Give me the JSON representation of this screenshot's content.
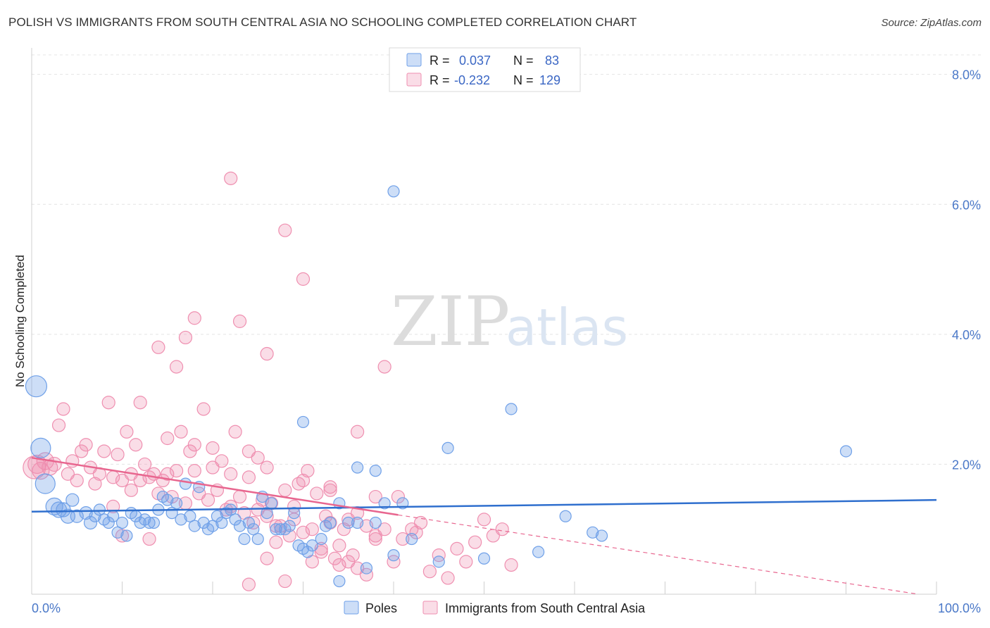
{
  "title": "POLISH VS IMMIGRANTS FROM SOUTH CENTRAL ASIA NO SCHOOLING COMPLETED CORRELATION CHART",
  "source": "Source: ZipAtlas.com",
  "watermark": {
    "zip": "ZIP",
    "atlas": "atlas"
  },
  "colors": {
    "poles": "#6fa0e8",
    "poles_fill": "rgba(111,160,232,0.35)",
    "poles_line": "#2f6fce",
    "immigrants": "#ef8fb0",
    "immigrants_fill": "rgba(239,143,176,0.30)",
    "immigrants_line": "#e8668f",
    "tick_label": "#4a78c8",
    "grid": "#e4e4e4"
  },
  "legend_box": {
    "rows": [
      {
        "r_label": "R =",
        "r_value": "0.037",
        "n_label": "N =",
        "n_value": "83"
      },
      {
        "r_label": "R =",
        "r_value": "-0.232",
        "n_label": "N =",
        "n_value": "129"
      }
    ]
  },
  "chart_data": {
    "type": "scatter",
    "title": "POLISH VS IMMIGRANTS FROM SOUTH CENTRAL ASIA NO SCHOOLING COMPLETED CORRELATION CHART",
    "xlabel": "",
    "ylabel": "No Schooling Completed",
    "xlim": [
      0,
      100
    ],
    "ylim": [
      0,
      8.3
    ],
    "x_tick_labels": [
      "0.0%",
      "100.0%"
    ],
    "y_ticks": [
      2.0,
      4.0,
      6.0,
      8.0
    ],
    "y_tick_labels": [
      "2.0%",
      "4.0%",
      "6.0%",
      "8.0%"
    ],
    "grid": true,
    "series": [
      {
        "name": "Poles",
        "r": 0.037,
        "n": 83,
        "trend": {
          "x": [
            0,
            100
          ],
          "y": [
            1.27,
            1.45
          ]
        },
        "points": [
          [
            0.5,
            3.2,
            15
          ],
          [
            1,
            2.25,
            14
          ],
          [
            1.5,
            1.7,
            14
          ],
          [
            2.5,
            1.35,
            12
          ],
          [
            3,
            1.3,
            11
          ],
          [
            3.5,
            1.3,
            10
          ],
          [
            4,
            1.2,
            10
          ],
          [
            4.5,
            1.45,
            9
          ],
          [
            5,
            1.2,
            9
          ],
          [
            6,
            1.25,
            9
          ],
          [
            6.5,
            1.1,
            9
          ],
          [
            7,
            1.2,
            8
          ],
          [
            7.5,
            1.3,
            8
          ],
          [
            8,
            1.15,
            8
          ],
          [
            8.5,
            1.1,
            8
          ],
          [
            9,
            1.2,
            8
          ],
          [
            9.5,
            0.95,
            8
          ],
          [
            10,
            1.1,
            8
          ],
          [
            10.5,
            0.9,
            8
          ],
          [
            11,
            1.25,
            8
          ],
          [
            11.5,
            1.2,
            8
          ],
          [
            12,
            1.1,
            8
          ],
          [
            12.5,
            1.15,
            8
          ],
          [
            13,
            1.1,
            8
          ],
          [
            13.5,
            1.1,
            8
          ],
          [
            14,
            1.3,
            8
          ],
          [
            14.5,
            1.5,
            8
          ],
          [
            15,
            1.45,
            8
          ],
          [
            15.5,
            1.25,
            8
          ],
          [
            16,
            1.4,
            8
          ],
          [
            16.5,
            1.15,
            8
          ],
          [
            17,
            1.7,
            8
          ],
          [
            17.5,
            1.2,
            8
          ],
          [
            18,
            1.05,
            8
          ],
          [
            18.5,
            1.65,
            8
          ],
          [
            19,
            1.1,
            8
          ],
          [
            19.5,
            1.0,
            8
          ],
          [
            20,
            1.05,
            8
          ],
          [
            20.5,
            1.2,
            8
          ],
          [
            21,
            1.1,
            8
          ],
          [
            21.5,
            1.25,
            8
          ],
          [
            22,
            1.3,
            8
          ],
          [
            22.5,
            1.15,
            8
          ],
          [
            23,
            1.05,
            8
          ],
          [
            23.5,
            0.85,
            8
          ],
          [
            24,
            1.1,
            8
          ],
          [
            24.5,
            1.0,
            8
          ],
          [
            25,
            0.85,
            8
          ],
          [
            25.5,
            1.5,
            8
          ],
          [
            26,
            1.25,
            8
          ],
          [
            26.5,
            1.4,
            8
          ],
          [
            27,
            1.0,
            8
          ],
          [
            27.5,
            1.0,
            8
          ],
          [
            28,
            1.0,
            8
          ],
          [
            28.5,
            1.05,
            8
          ],
          [
            29,
            1.25,
            8
          ],
          [
            29.5,
            0.75,
            8
          ],
          [
            30,
            0.7,
            8
          ],
          [
            30.5,
            0.65,
            8
          ],
          [
            31,
            0.75,
            8
          ],
          [
            32,
            0.85,
            8
          ],
          [
            33,
            1.1,
            8
          ],
          [
            32.5,
            1.05,
            8
          ],
          [
            34,
            1.4,
            8
          ],
          [
            35,
            1.1,
            8
          ],
          [
            36,
            1.1,
            8
          ],
          [
            37,
            0.4,
            8
          ],
          [
            38,
            1.1,
            8
          ],
          [
            39,
            1.4,
            8
          ],
          [
            40,
            0.6,
            8
          ],
          [
            41,
            1.4,
            8
          ],
          [
            30,
            2.65,
            8
          ],
          [
            34,
            0.2,
            8
          ],
          [
            36,
            1.95,
            8
          ],
          [
            38,
            1.9,
            8
          ],
          [
            40,
            6.2,
            8
          ],
          [
            42,
            0.85,
            8
          ],
          [
            45,
            0.5,
            8
          ],
          [
            46,
            2.25,
            8
          ],
          [
            50,
            0.55,
            8
          ],
          [
            53,
            2.85,
            8
          ],
          [
            56,
            0.65,
            8
          ],
          [
            59,
            1.2,
            8
          ],
          [
            62,
            0.95,
            8
          ],
          [
            63,
            0.9,
            8
          ],
          [
            90,
            2.2,
            8
          ]
        ]
      },
      {
        "name": "Immigrants from South Central Asia",
        "r": -0.232,
        "n": 129,
        "trend": {
          "x": [
            0,
            40.5
          ],
          "y": [
            2.1,
            1.22
          ]
        },
        "trend_dashed": {
          "x": [
            40.5,
            98
          ],
          "y": [
            1.22,
            0.0
          ]
        },
        "points": [
          [
            0.3,
            1.95,
            16
          ],
          [
            0.6,
            2.0,
            13
          ],
          [
            1,
            1.9,
            12
          ],
          [
            1.5,
            2.05,
            12
          ],
          [
            2,
            1.95,
            11
          ],
          [
            2.5,
            2.0,
            10
          ],
          [
            3,
            2.6,
            9
          ],
          [
            3.5,
            2.85,
            9
          ],
          [
            4,
            1.85,
            9
          ],
          [
            4.5,
            2.05,
            9
          ],
          [
            5,
            1.75,
            9
          ],
          [
            5.5,
            2.2,
            9
          ],
          [
            6,
            2.3,
            9
          ],
          [
            6.5,
            1.95,
            9
          ],
          [
            7,
            1.7,
            9
          ],
          [
            7.5,
            1.85,
            9
          ],
          [
            8,
            2.2,
            9
          ],
          [
            8.5,
            2.95,
            9
          ],
          [
            9,
            1.8,
            9
          ],
          [
            9.5,
            2.15,
            9
          ],
          [
            10,
            1.75,
            9
          ],
          [
            10.5,
            2.5,
            9
          ],
          [
            11,
            1.85,
            9
          ],
          [
            11.5,
            2.3,
            9
          ],
          [
            12,
            1.75,
            9
          ],
          [
            12.5,
            2.0,
            9
          ],
          [
            13,
            1.8,
            9
          ],
          [
            13.5,
            1.85,
            9
          ],
          [
            14,
            1.55,
            9
          ],
          [
            14.5,
            1.75,
            9
          ],
          [
            15,
            1.85,
            9
          ],
          [
            15.5,
            1.5,
            9
          ],
          [
            16,
            1.9,
            9
          ],
          [
            16.5,
            2.5,
            9
          ],
          [
            17,
            1.4,
            9
          ],
          [
            17.5,
            2.2,
            9
          ],
          [
            18,
            1.9,
            9
          ],
          [
            18.5,
            1.55,
            9
          ],
          [
            19,
            2.85,
            9
          ],
          [
            19.5,
            1.45,
            9
          ],
          [
            20,
            1.95,
            9
          ],
          [
            20.5,
            1.6,
            9
          ],
          [
            21,
            2.05,
            9
          ],
          [
            21.5,
            1.3,
            9
          ],
          [
            22,
            1.85,
            9
          ],
          [
            22.5,
            2.5,
            9
          ],
          [
            23,
            1.5,
            9
          ],
          [
            23.5,
            1.25,
            9
          ],
          [
            24,
            1.8,
            9
          ],
          [
            24.5,
            1.1,
            9
          ],
          [
            25,
            2.1,
            9
          ],
          [
            25.5,
            1.45,
            9
          ],
          [
            26,
            1.2,
            9
          ],
          [
            26.5,
            1.4,
            9
          ],
          [
            27,
            0.8,
            9
          ],
          [
            27.5,
            1.05,
            9
          ],
          [
            28,
            1.6,
            9
          ],
          [
            28.5,
            0.9,
            9
          ],
          [
            29,
            1.35,
            9
          ],
          [
            29.5,
            1.7,
            9
          ],
          [
            30,
            0.95,
            9
          ],
          [
            30.5,
            1.9,
            9
          ],
          [
            31,
            0.5,
            9
          ],
          [
            31.5,
            1.55,
            9
          ],
          [
            32,
            0.7,
            9
          ],
          [
            32.5,
            1.2,
            9
          ],
          [
            33,
            1.65,
            9
          ],
          [
            33.5,
            0.55,
            9
          ],
          [
            34,
            0.45,
            9
          ],
          [
            34.5,
            1.0,
            9
          ],
          [
            35,
            0.5,
            9
          ],
          [
            35.5,
            0.6,
            9
          ],
          [
            36,
            1.25,
            9
          ],
          [
            37,
            0.3,
            9
          ],
          [
            38,
            0.9,
            9
          ],
          [
            39,
            1.0,
            9
          ],
          [
            40,
            0.5,
            9
          ],
          [
            40.5,
            1.5,
            9
          ],
          [
            41,
            0.85,
            9
          ],
          [
            42,
            1.0,
            9
          ],
          [
            42.5,
            0.95,
            9
          ],
          [
            43,
            1.1,
            9
          ],
          [
            44,
            0.35,
            9
          ],
          [
            45,
            0.6,
            9
          ],
          [
            46,
            0.25,
            9
          ],
          [
            47,
            0.7,
            9
          ],
          [
            48,
            0.5,
            9
          ],
          [
            49,
            0.8,
            9
          ],
          [
            50,
            1.15,
            9
          ],
          [
            51,
            0.9,
            9
          ],
          [
            52,
            1.0,
            9
          ],
          [
            53,
            0.45,
            9
          ],
          [
            22,
            6.4,
            9
          ],
          [
            28,
            5.6,
            9
          ],
          [
            30,
            4.85,
            9
          ],
          [
            18,
            4.25,
            9
          ],
          [
            23,
            4.2,
            9
          ],
          [
            17,
            3.95,
            9
          ],
          [
            26,
            3.7,
            9
          ],
          [
            14,
            3.8,
            9
          ],
          [
            16,
            3.5,
            9
          ],
          [
            39,
            3.5,
            9
          ],
          [
            12,
            2.95,
            9
          ],
          [
            15,
            2.4,
            9
          ],
          [
            18,
            2.3,
            9
          ],
          [
            20,
            2.25,
            9
          ],
          [
            24,
            2.2,
            9
          ],
          [
            26,
            1.95,
            9
          ],
          [
            30,
            1.75,
            9
          ],
          [
            33,
            1.6,
            9
          ],
          [
            36,
            2.5,
            9
          ],
          [
            38,
            1.5,
            9
          ],
          [
            22,
            1.35,
            9
          ],
          [
            25,
            1.3,
            9
          ],
          [
            27,
            1.05,
            9
          ],
          [
            29,
            1.15,
            9
          ],
          [
            31,
            1.0,
            9
          ],
          [
            33,
            1.1,
            9
          ],
          [
            35,
            1.15,
            9
          ],
          [
            37,
            1.05,
            9
          ],
          [
            28,
            0.2,
            9
          ],
          [
            24,
            0.15,
            9
          ],
          [
            26,
            0.55,
            9
          ],
          [
            32,
            0.65,
            9
          ],
          [
            34,
            0.75,
            9
          ],
          [
            36,
            0.4,
            9
          ],
          [
            38,
            0.85,
            9
          ],
          [
            13,
            0.85,
            9
          ],
          [
            10,
            0.9,
            9
          ],
          [
            11,
            1.6,
            9
          ],
          [
            9,
            1.35,
            9
          ]
        ]
      }
    ]
  }
}
